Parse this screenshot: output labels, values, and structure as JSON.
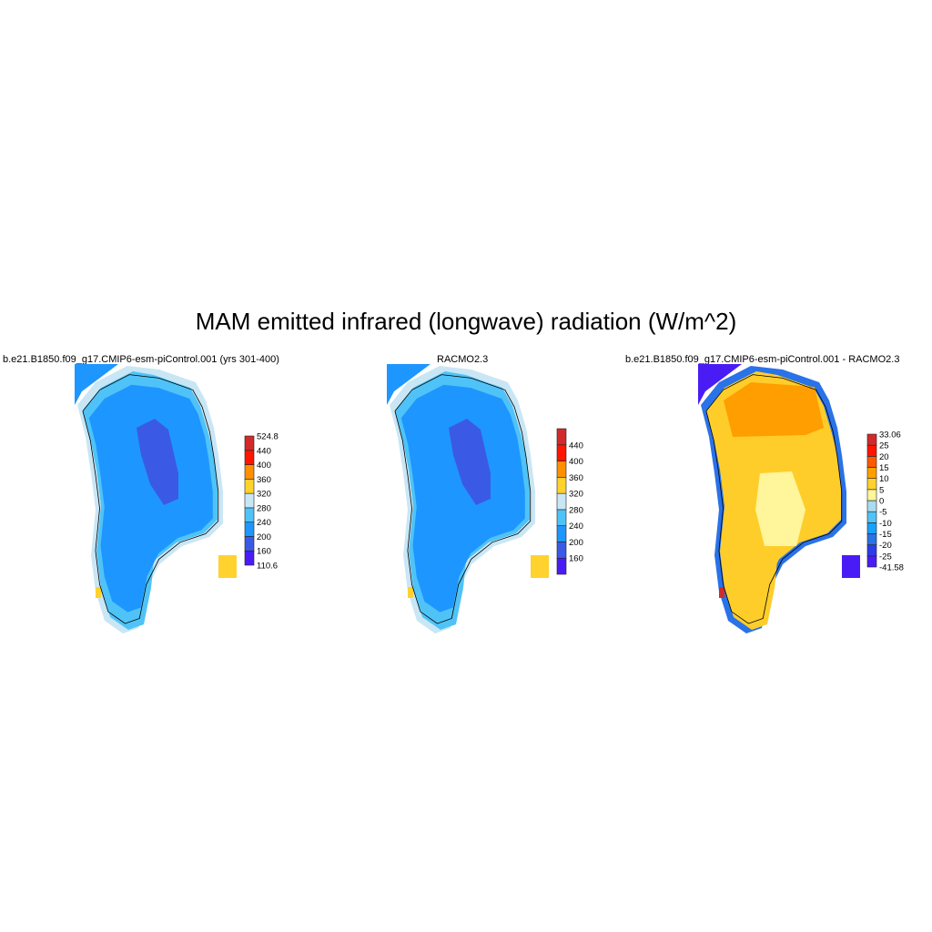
{
  "title": "MAM emitted infrared (longwave) radiation (W/m^2)",
  "chart_data": [
    {
      "type": "heatmap",
      "title": "b.e21.B1850.f09_g17.CMIP6-esm-piControl.001 (yrs 301-400)",
      "colorbar": {
        "labels": [
          "110.6",
          "160",
          "200",
          "240",
          "280",
          "320",
          "360",
          "400",
          "440",
          "524.8"
        ],
        "colors": [
          "#4a1cf5",
          "#3a5ae6",
          "#1e96ff",
          "#4fc3f7",
          "#c9e6f5",
          "#ffd22e",
          "#ff9000",
          "#ff1500",
          "#d22a2a"
        ]
      }
    },
    {
      "type": "heatmap",
      "title": "RACMO2.3",
      "colorbar": {
        "labels": [
          "160",
          "200",
          "240",
          "280",
          "320",
          "360",
          "400",
          "440"
        ],
        "colors": [
          "#4a1cf5",
          "#3a5ae6",
          "#1e96ff",
          "#4fc3f7",
          "#c9e6f5",
          "#ffd22e",
          "#ff9000",
          "#ff1500",
          "#d22a2a"
        ]
      }
    },
    {
      "type": "heatmap",
      "title": "b.e21.B1850.f09_g17.CMIP6-esm-piControl.001 - RACMO2.3",
      "colorbar": {
        "labels": [
          "-41.58",
          "-25",
          "-20",
          "-15",
          "-10",
          "-5",
          "0",
          "5",
          "10",
          "15",
          "20",
          "25",
          "33.06"
        ],
        "colors": [
          "#4a1cf5",
          "#2c3ce8",
          "#2a72e8",
          "#16a0ff",
          "#4fc3f7",
          "#a8dcf0",
          "#fff59a",
          "#ffd22e",
          "#ffa000",
          "#ff5a00",
          "#ff1500",
          "#d22a2a"
        ]
      }
    }
  ]
}
